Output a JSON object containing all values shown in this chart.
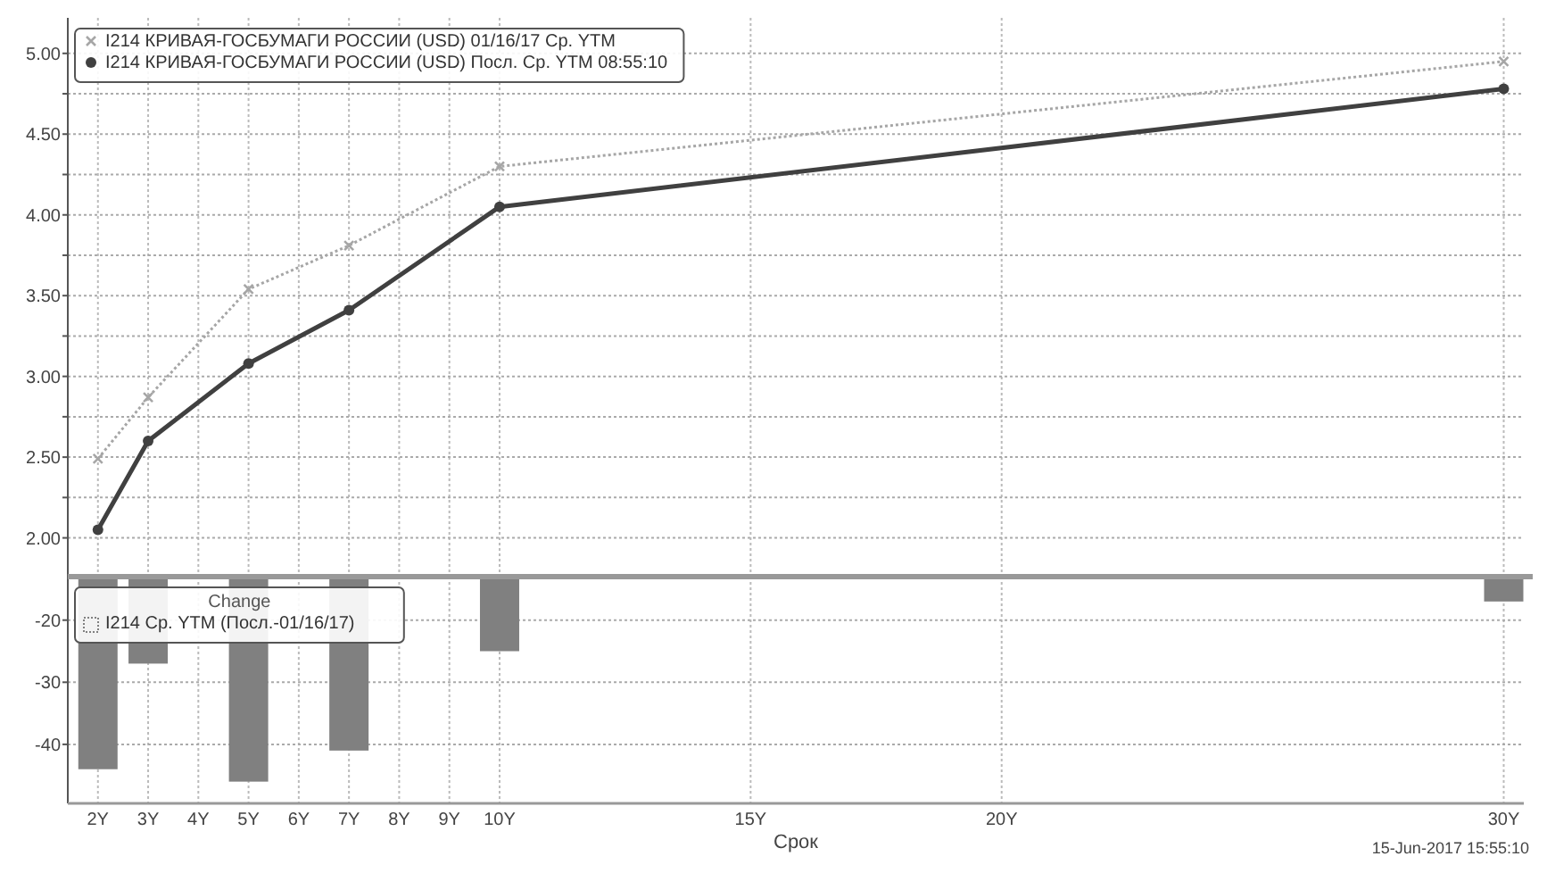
{
  "chart_data": [
    {
      "type": "line",
      "x": [
        2,
        3,
        5,
        7,
        10,
        30
      ],
      "xlim": [
        1.4,
        30.4
      ],
      "xticks": [
        2,
        3,
        4,
        5,
        6,
        7,
        8,
        9,
        10,
        15,
        20,
        30
      ],
      "ylim": [
        1.76,
        5.22
      ],
      "yticks": [
        {
          "value": 2,
          "label": "2.00"
        },
        {
          "value": 2.25,
          "label": null
        },
        {
          "value": 2.5,
          "label": "2.50"
        },
        {
          "value": 2.75,
          "label": null
        },
        {
          "value": 3,
          "label": "3.00"
        },
        {
          "value": 3.25,
          "label": null
        },
        {
          "value": 3.5,
          "label": "3.50"
        },
        {
          "value": 3.75,
          "label": null
        },
        {
          "value": 4,
          "label": "4.00"
        },
        {
          "value": 4.25,
          "label": null
        },
        {
          "value": 4.5,
          "label": "4.50"
        },
        {
          "value": 4.75,
          "label": null
        },
        {
          "value": 5,
          "label": "5.00"
        }
      ],
      "series": [
        {
          "name": "I214 КРИВАЯ-ГОСБУМАГИ РОССИИ (USD) 01/16/17 Ср. YTM",
          "color": "#a6a6a6",
          "values": [
            2.49,
            2.87,
            3.54,
            3.81,
            4.3,
            4.95
          ],
          "marker": "cross",
          "line_style": "dotted"
        },
        {
          "name": "I214 КРИВАЯ-ГОСБУМАГИ РОССИИ (USD) Посл. Ср. YTM 08:55:10",
          "color": "#404040",
          "values": [
            2.05,
            2.6,
            3.08,
            3.41,
            4.05,
            4.78
          ],
          "marker": "circle",
          "line_style": "solid"
        }
      ],
      "grid": true,
      "legend": "top left",
      "tick_labels": "y"
    },
    {
      "type": "bar",
      "x": [
        2,
        3,
        5,
        7,
        10,
        30
      ],
      "xlim": [
        1.4,
        30.4
      ],
      "xticks": [
        {
          "value": 2,
          "label": "2Y"
        },
        {
          "value": 3,
          "label": "3Y"
        },
        {
          "value": 4,
          "label": "4Y"
        },
        {
          "value": 5,
          "label": "5Y"
        },
        {
          "value": 6,
          "label": "6Y"
        },
        {
          "value": 7,
          "label": "7Y"
        },
        {
          "value": 8,
          "label": "8Y"
        },
        {
          "value": 9,
          "label": "9Y"
        },
        {
          "value": 10,
          "label": "10Y"
        },
        {
          "value": 15,
          "label": "15Y"
        },
        {
          "value": 20,
          "label": "20Y"
        },
        {
          "value": 30,
          "label": "30Y"
        }
      ],
      "ylim": [
        -49.5,
        -13
      ],
      "yticks": [
        -40,
        -30,
        -20
      ],
      "xlabel": "Срок",
      "legend_title": "Change",
      "series": [
        {
          "name": "I214 Ср. YTM (Посл.-01/16/17)",
          "color": "#808080",
          "values": [
            -44,
            -27,
            -46,
            -41,
            -25,
            -17
          ]
        }
      ],
      "grid": true,
      "legend": "top left",
      "annotations": [
        "15-Jun-2017 15:55:10"
      ]
    }
  ]
}
